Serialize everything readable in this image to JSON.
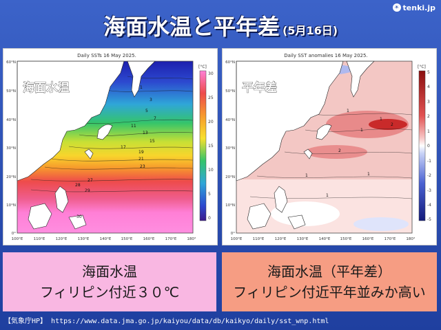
{
  "logo": {
    "text": "tenki.jp",
    "icon": "sun-icon"
  },
  "title": {
    "main": "海面水温と平年差",
    "date": "(5月16日)"
  },
  "maps": {
    "left": {
      "chart_title": "Daily SSTs 16 May 2025.",
      "overlay_label": "海面水温",
      "unit": "[°C]",
      "colorbar_ticks": [
        "30",
        "25",
        "20",
        "15",
        "10",
        "5",
        "0"
      ],
      "contour_labels": [
        "1",
        "3",
        "5",
        "7",
        "11",
        "13",
        "15",
        "17",
        "19",
        "21",
        "23",
        "27",
        "28",
        "29",
        "30"
      ],
      "colors": {
        "warm": "#ee4b6a",
        "hot": "#ff7fd6",
        "mid": "#f5e03a",
        "cool": "#34c46b",
        "cold": "#2333c2"
      }
    },
    "right": {
      "chart_title": "Daily SST anomalies 16 May 2025.",
      "overlay_label": "平年差",
      "unit": "[°C]",
      "colorbar_ticks": [
        "5",
        "4",
        "3",
        "2",
        "1",
        "0",
        "-1",
        "-2",
        "-3",
        "-4",
        "-5"
      ],
      "contour_labels": [
        "1",
        "1",
        "1",
        "2",
        "2",
        "1",
        "1",
        "1"
      ],
      "colors": {
        "positive": "#e88a8a",
        "strong_positive": "#c92a2a",
        "negative": "#5b77d9"
      }
    },
    "lat_labels": [
      "60°N",
      "50°N",
      "40°N",
      "30°N",
      "20°N",
      "10°N",
      "0°"
    ],
    "lon_labels": [
      "100°E",
      "110°E",
      "120°E",
      "130°E",
      "140°E",
      "150°E",
      "160°E",
      "170°E",
      "180°"
    ]
  },
  "captions": {
    "left": {
      "line1": "海面水温",
      "line2": "フィリピン付近３０℃"
    },
    "right": {
      "line1": "海面水温（平年差）",
      "line2": "フィリピン付近平年並みか高い"
    }
  },
  "source": "【気象庁HP】 https://www.data.jma.go.jp/kaiyou/data/db/kaikyo/daily/sst_wnp.html"
}
